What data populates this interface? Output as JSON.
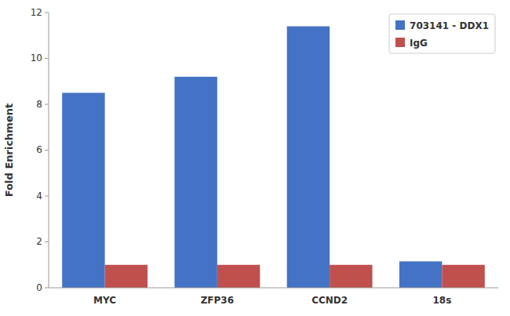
{
  "chart_data": {
    "type": "bar",
    "categories": [
      "MYC",
      "ZFP36",
      "CCND2",
      "18s"
    ],
    "series": [
      {
        "name": "703141 - DDX1",
        "color": "#4472c4",
        "values": [
          8.5,
          9.2,
          11.4,
          1.15
        ]
      },
      {
        "name": "IgG",
        "color": "#c0504d",
        "values": [
          1.0,
          1.0,
          1.0,
          1.0
        ]
      }
    ],
    "ylabel": "Fold Enrichment",
    "ylim": [
      0,
      12
    ],
    "yticks": [
      0,
      2,
      4,
      6,
      8,
      10,
      12
    ],
    "legend": "upper right",
    "grid": false
  }
}
